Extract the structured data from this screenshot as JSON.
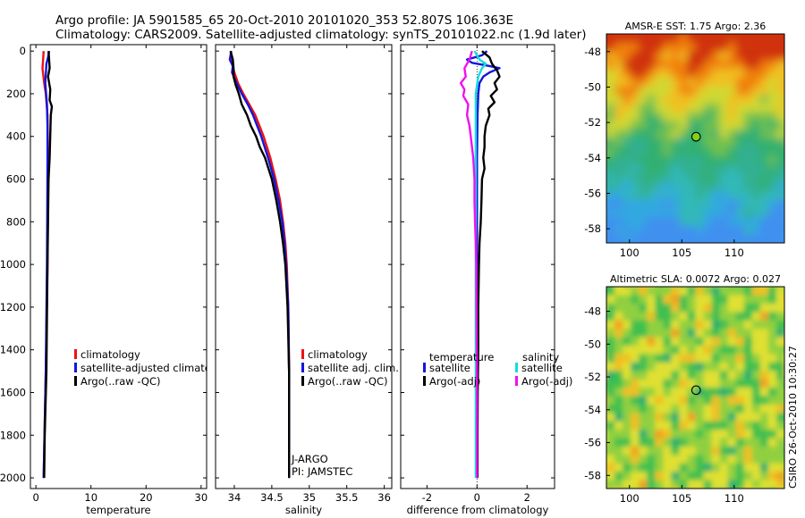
{
  "header": {
    "line1": "Argo profile: JA 5901585_65 20-Oct-2010 20101020_353 52.807S 106.363E",
    "line2": "Climatology: CARS2009. Satellite-adjusted climatology: synTS_20101022.nc (1.9d later)"
  },
  "footer_text": "CSIRO 26-Oct-2010 10:30:27",
  "colors": {
    "climatology": "#ee1111",
    "satellite": "#1515dd",
    "argo": "#000000",
    "sal_satellite": "#11dddd",
    "sal_argo": "#ee11ee",
    "marker_fill": "#7fd11a"
  },
  "chart_data": [
    {
      "type": "line",
      "panel": "temperature",
      "xlabel": "temperature",
      "xlim": [
        -1,
        31
      ],
      "ylim": [
        2050,
        -30
      ],
      "x_ticks": [
        "0",
        "10",
        "20",
        "30"
      ],
      "y_ticks": [
        "0",
        "200",
        "400",
        "600",
        "800",
        "1000",
        "1200",
        "1400",
        "1600",
        "1800",
        "2000"
      ],
      "legend_labels": [
        "climatology",
        "satellite-adjusted climatolo",
        "Argo(..raw -QC)"
      ],
      "series": [
        {
          "name": "climatology",
          "color_key": "climatology",
          "depth": [
            0,
            40,
            80,
            150,
            200,
            300,
            500,
            800,
            1000,
            1500,
            2000
          ],
          "values": [
            1.4,
            1.3,
            1.2,
            1.5,
            1.8,
            2.1,
            2.2,
            2.15,
            2.1,
            1.8,
            1.4
          ]
        },
        {
          "name": "satellite-adjusted climatolo",
          "color_key": "satellite",
          "depth": [
            0,
            30,
            60,
            150,
            250,
            350,
            500,
            800,
            1000,
            1500,
            2000
          ],
          "values": [
            2.4,
            2.2,
            1.9,
            1.7,
            2.0,
            2.1,
            2.1,
            2.05,
            2.0,
            1.8,
            1.4
          ]
        },
        {
          "name": "Argo(..raw -QC)",
          "color_key": "argo",
          "depth": [
            0,
            40,
            80,
            120,
            180,
            230,
            260,
            300,
            500,
            600,
            800,
            1000,
            1500,
            1800,
            2000
          ],
          "values": [
            2.3,
            2.4,
            2.5,
            2.2,
            2.6,
            2.5,
            2.9,
            2.7,
            2.5,
            2.3,
            2.2,
            2.1,
            1.9,
            1.6,
            1.5
          ]
        }
      ]
    },
    {
      "type": "line",
      "panel": "salinity",
      "xlabel": "salinity",
      "xlim": [
        33.75,
        36.1
      ],
      "ylim": [
        2050,
        -30
      ],
      "x_ticks": [
        "34",
        "34.5",
        "35",
        "35.5",
        "36"
      ],
      "legend_labels": [
        "climatology",
        "satellite adj. clim.",
        "Argo(..raw -QC)"
      ],
      "annotations": [
        "J-ARGO",
        "PI: JAMSTEC"
      ],
      "series": [
        {
          "name": "climatology",
          "color_key": "climatology",
          "depth": [
            0,
            60,
            100,
            150,
            200,
            250,
            300,
            400,
            500,
            600,
            700,
            800,
            900,
            1000,
            1200,
            1500,
            2000
          ],
          "values": [
            33.95,
            33.97,
            34.0,
            34.05,
            34.12,
            34.2,
            34.28,
            34.39,
            34.48,
            34.55,
            34.61,
            34.65,
            34.68,
            34.7,
            34.72,
            34.73,
            34.73
          ]
        },
        {
          "name": "satellite adj. clim.",
          "color_key": "satellite",
          "depth": [
            0,
            40,
            70,
            100,
            150,
            200,
            250,
            300,
            400,
            500,
            600,
            700,
            800,
            900,
            1000,
            1200,
            1500,
            2000
          ],
          "values": [
            33.96,
            33.94,
            33.98,
            33.97,
            34.03,
            34.1,
            34.18,
            34.25,
            34.36,
            34.45,
            34.53,
            34.59,
            34.64,
            34.67,
            34.69,
            34.72,
            34.73,
            34.73
          ]
        },
        {
          "name": "Argo(..raw -QC)",
          "color_key": "argo",
          "depth": [
            0,
            40,
            80,
            120,
            160,
            200,
            250,
            300,
            350,
            400,
            450,
            500,
            600,
            700,
            800,
            900,
            1000,
            1200,
            1500,
            2000
          ],
          "values": [
            33.95,
            33.98,
            33.99,
            33.99,
            34.02,
            34.06,
            34.1,
            34.17,
            34.22,
            34.29,
            34.34,
            34.41,
            34.5,
            34.56,
            34.61,
            34.65,
            34.68,
            34.71,
            34.73,
            34.73
          ]
        }
      ]
    },
    {
      "type": "line",
      "panel": "difference",
      "xlabel": "difference from climatology",
      "xlim": [
        -3.05,
        3.1
      ],
      "ylim": [
        2050,
        -30
      ],
      "x_ticks": [
        "-2",
        "0",
        "2"
      ],
      "legend": {
        "temperature_heading": "temperature",
        "salinity_heading": "salinity",
        "temperature_labels": [
          "satellite",
          "Argo(-adj)"
        ],
        "salinity_labels": [
          "satellite",
          "Argo(-adj)"
        ]
      },
      "series": [
        {
          "name": "satellite",
          "group": "temperature",
          "color_key": "satellite",
          "depth": [
            0,
            20,
            40,
            55,
            70,
            80,
            90,
            100,
            120,
            150,
            200,
            300,
            500,
            800,
            1000,
            1500,
            2000
          ],
          "values": [
            0.4,
            0.2,
            -0.4,
            -0.2,
            0.5,
            0.9,
            0.7,
            0.5,
            0.25,
            0.1,
            0.05,
            0.02,
            0.0,
            0.0,
            0.0,
            0.0,
            0.0
          ]
        },
        {
          "name": "Argo(-adj)",
          "group": "temperature",
          "color_key": "argo",
          "depth": [
            0,
            30,
            60,
            90,
            120,
            150,
            180,
            210,
            240,
            270,
            300,
            350,
            400,
            450,
            500,
            550,
            600,
            700,
            800,
            900,
            1000,
            1200,
            1400,
            1600,
            1800,
            2000
          ],
          "values": [
            0.2,
            0.5,
            0.6,
            0.8,
            0.9,
            0.7,
            0.8,
            0.55,
            0.7,
            0.45,
            0.5,
            0.35,
            0.3,
            0.3,
            0.25,
            0.3,
            0.2,
            0.18,
            0.15,
            0.1,
            0.08,
            0.05,
            0.05,
            0.03,
            0.02,
            0.02
          ]
        },
        {
          "name": "satellite",
          "group": "salinity",
          "color_key": "sal_satellite",
          "depth": [
            0,
            40,
            60,
            80,
            120,
            200,
            300,
            500,
            1000,
            2000
          ],
          "values": [
            -0.1,
            0.1,
            0.35,
            0.2,
            0.05,
            -0.05,
            -0.05,
            -0.05,
            -0.05,
            -0.05
          ]
        },
        {
          "name": "Argo(-adj)",
          "group": "salinity",
          "color_key": "sal_argo",
          "depth": [
            0,
            40,
            80,
            120,
            150,
            180,
            210,
            250,
            300,
            350,
            400,
            450,
            500,
            600,
            700,
            800,
            900,
            1000,
            1200,
            1400,
            1600,
            2000
          ],
          "values": [
            -0.2,
            -0.3,
            -0.5,
            -0.45,
            -0.65,
            -0.5,
            -0.55,
            -0.35,
            -0.4,
            -0.3,
            -0.25,
            -0.2,
            -0.15,
            -0.1,
            -0.1,
            -0.08,
            -0.05,
            -0.03,
            -0.02,
            -0.01,
            0.0,
            0.0
          ]
        }
      ]
    },
    {
      "type": "heatmap",
      "panel": "sst-map",
      "title": "AMSR-E SST: 1.75 Argo: 2.36",
      "xlim": [
        97.8,
        114.8
      ],
      "ylim": [
        -58.8,
        -47.0
      ],
      "x_ticks": [
        "100",
        "105",
        "110"
      ],
      "y_ticks": [
        "-48",
        "-50",
        "-52",
        "-54",
        "-56",
        "-58"
      ],
      "marker": {
        "lon": 106.363,
        "lat": -52.807
      }
    },
    {
      "type": "heatmap",
      "panel": "sla-map",
      "title": "Altimetric SLA: 0.0072 Argo: 0.027",
      "xlim": [
        97.8,
        114.8
      ],
      "ylim": [
        -58.8,
        -46.5
      ],
      "x_ticks": [
        "100",
        "105",
        "110"
      ],
      "y_ticks": [
        "-48",
        "-50",
        "-52",
        "-54",
        "-56",
        "-58"
      ],
      "marker": {
        "lon": 106.363,
        "lat": -52.807
      }
    }
  ]
}
